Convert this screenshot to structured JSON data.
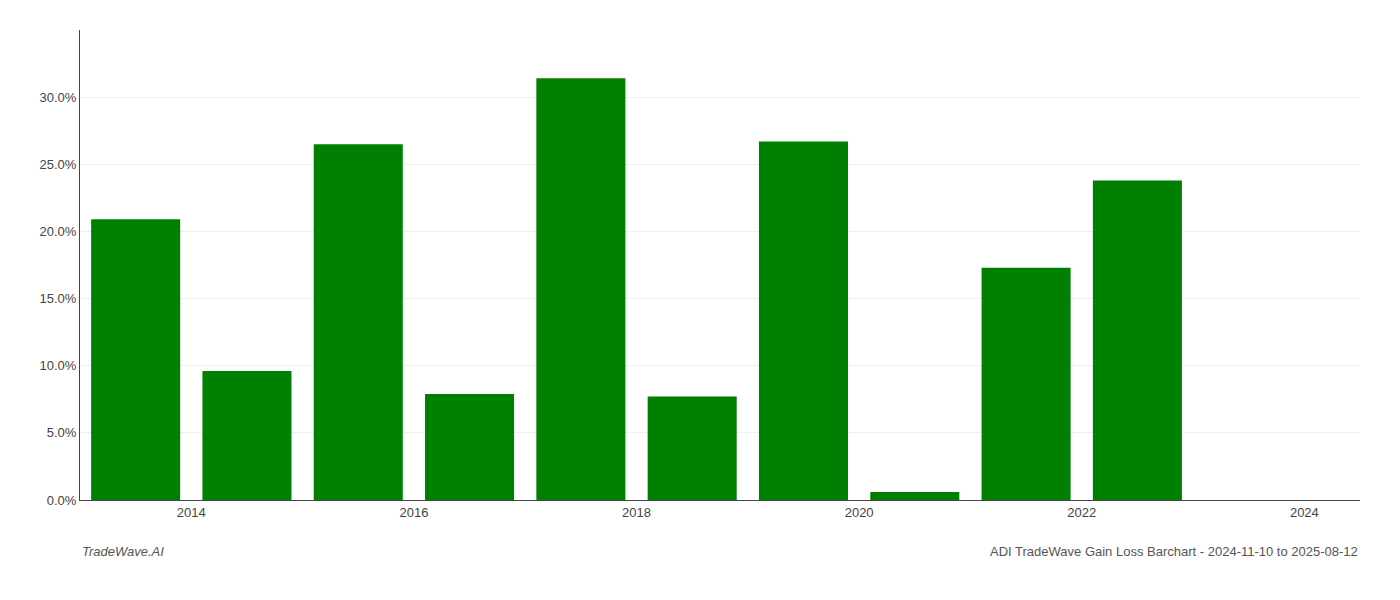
{
  "chart_data": {
    "type": "bar",
    "x": [
      2013.5,
      2014.5,
      2015.5,
      2016.5,
      2017.5,
      2018.5,
      2019.5,
      2020.5,
      2021.5,
      2022.5,
      2023.5
    ],
    "values": [
      0.209,
      0.096,
      0.265,
      0.079,
      0.314,
      0.077,
      0.267,
      0.006,
      0.173,
      0.238,
      0.0
    ],
    "color": "#008000",
    "xlim": [
      2013.0,
      2024.5
    ],
    "xticks": [
      2014,
      2016,
      2018,
      2020,
      2022,
      2024
    ],
    "ylim": [
      0,
      0.35
    ],
    "yticks": [
      {
        "value": 0.0,
        "label": "0.0%"
      },
      {
        "value": 0.05,
        "label": "5.0%"
      },
      {
        "value": 0.1,
        "label": "10.0%"
      },
      {
        "value": 0.15,
        "label": "15.0%"
      },
      {
        "value": 0.2,
        "label": "20.0%"
      },
      {
        "value": 0.25,
        "label": "25.0%"
      },
      {
        "value": 0.3,
        "label": "30.0%"
      }
    ],
    "grid": true,
    "annotations": [
      "TradeWave.AI",
      "ADI TradeWave Gain Loss Barchart - 2024-11-10 to 2025-08-12"
    ]
  }
}
